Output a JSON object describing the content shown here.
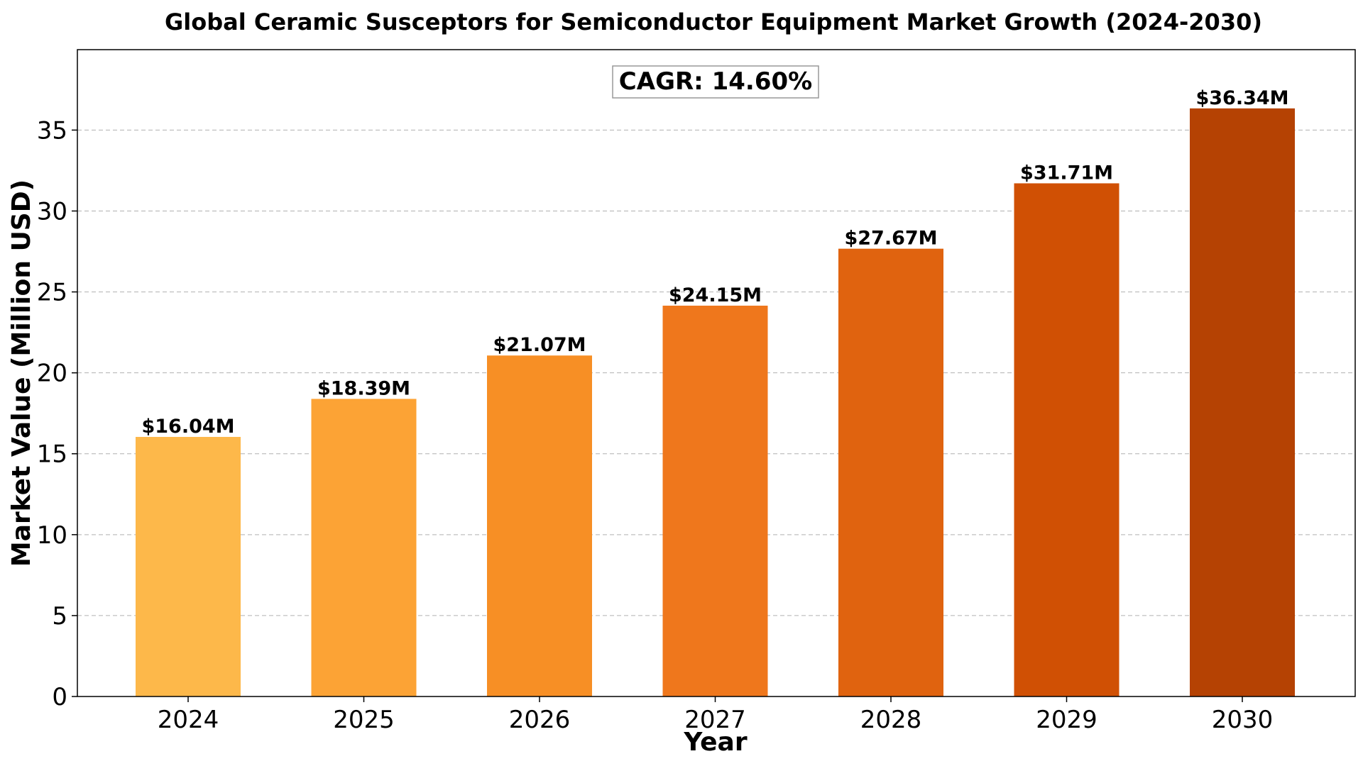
{
  "chart_data": {
    "type": "bar",
    "title": "Global Ceramic Susceptors for Semiconductor Equipment Market Growth (2024-2030)",
    "xlabel": "Year",
    "ylabel": "Market Value (Million USD)",
    "categories": [
      "2024",
      "2025",
      "2026",
      "2027",
      "2028",
      "2029",
      "2030"
    ],
    "values": [
      16.04,
      18.39,
      21.07,
      24.15,
      27.67,
      31.71,
      36.34
    ],
    "data_labels": [
      "$16.04M",
      "$18.39M",
      "$21.07M",
      "$24.15M",
      "$27.67M",
      "$31.71M",
      "$36.34M"
    ],
    "colors": [
      "#fdb84a",
      "#fca335",
      "#f78f25",
      "#ef771c",
      "#e0630f",
      "#d05004",
      "#b54203"
    ],
    "yticks": [
      0,
      5,
      10,
      15,
      20,
      25,
      30,
      35
    ],
    "ylim": [
      0,
      39.97
    ],
    "grid": "y-dashed",
    "annotation": "CAGR: 14.60%"
  }
}
